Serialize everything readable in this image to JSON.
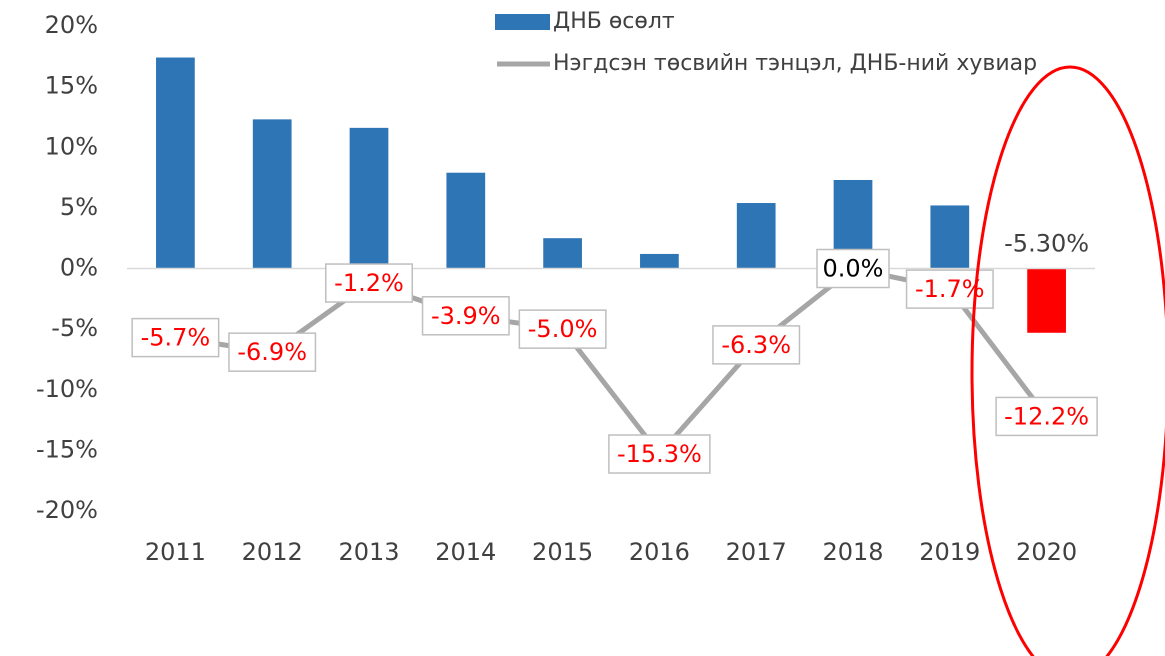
{
  "chart_data": {
    "type": "bar_line",
    "categories": [
      "2011",
      "2012",
      "2013",
      "2014",
      "2015",
      "2016",
      "2017",
      "2018",
      "2019",
      "2020"
    ],
    "ylim": [
      -20,
      20
    ],
    "yticks": [
      {
        "value": 20,
        "label": "20%"
      },
      {
        "value": 15,
        "label": "15%"
      },
      {
        "value": 10,
        "label": "10%"
      },
      {
        "value": 5,
        "label": "5%"
      },
      {
        "value": 0,
        "label": "0%"
      },
      {
        "value": -5,
        "label": "-5%"
      },
      {
        "value": -10,
        "label": "-10%"
      },
      {
        "value": -15,
        "label": "-15%"
      },
      {
        "value": -20,
        "label": "-20%"
      }
    ],
    "series": [
      {
        "name": "ДНБ өсөлт",
        "type": "bar",
        "color": "#2e75b6",
        "colors": [
          "#2e75b6",
          "#2e75b6",
          "#2e75b6",
          "#2e75b6",
          "#2e75b6",
          "#2e75b6",
          "#2e75b6",
          "#2e75b6",
          "#2e75b6",
          "#ff0000"
        ],
        "values": [
          17.4,
          12.3,
          11.6,
          7.9,
          2.5,
          1.2,
          5.4,
          7.3,
          5.2,
          -5.3
        ],
        "value_labels": [
          null,
          null,
          null,
          null,
          null,
          null,
          null,
          null,
          null,
          "-5.30%"
        ]
      },
      {
        "name": "Нэгдсэн төсвийн тэнцэл, ДНБ-ний хувиар",
        "type": "line",
        "color": "#a6a6a6",
        "values": [
          -5.7,
          -6.9,
          -1.2,
          -3.9,
          -5.0,
          -15.3,
          -6.3,
          0.0,
          -1.7,
          -12.2
        ],
        "value_labels": [
          "-5.7%",
          "-6.9%",
          "-1.2%",
          "-3.9%",
          "-5.0%",
          "-15.3%",
          "-6.3%",
          "0.0%",
          "-1.7%",
          "-12.2%"
        ],
        "label_colors": [
          "#ff0000",
          "#ff0000",
          "#ff0000",
          "#ff0000",
          "#ff0000",
          "#ff0000",
          "#ff0000",
          "#000000",
          "#ff0000",
          "#ff0000"
        ]
      }
    ]
  }
}
